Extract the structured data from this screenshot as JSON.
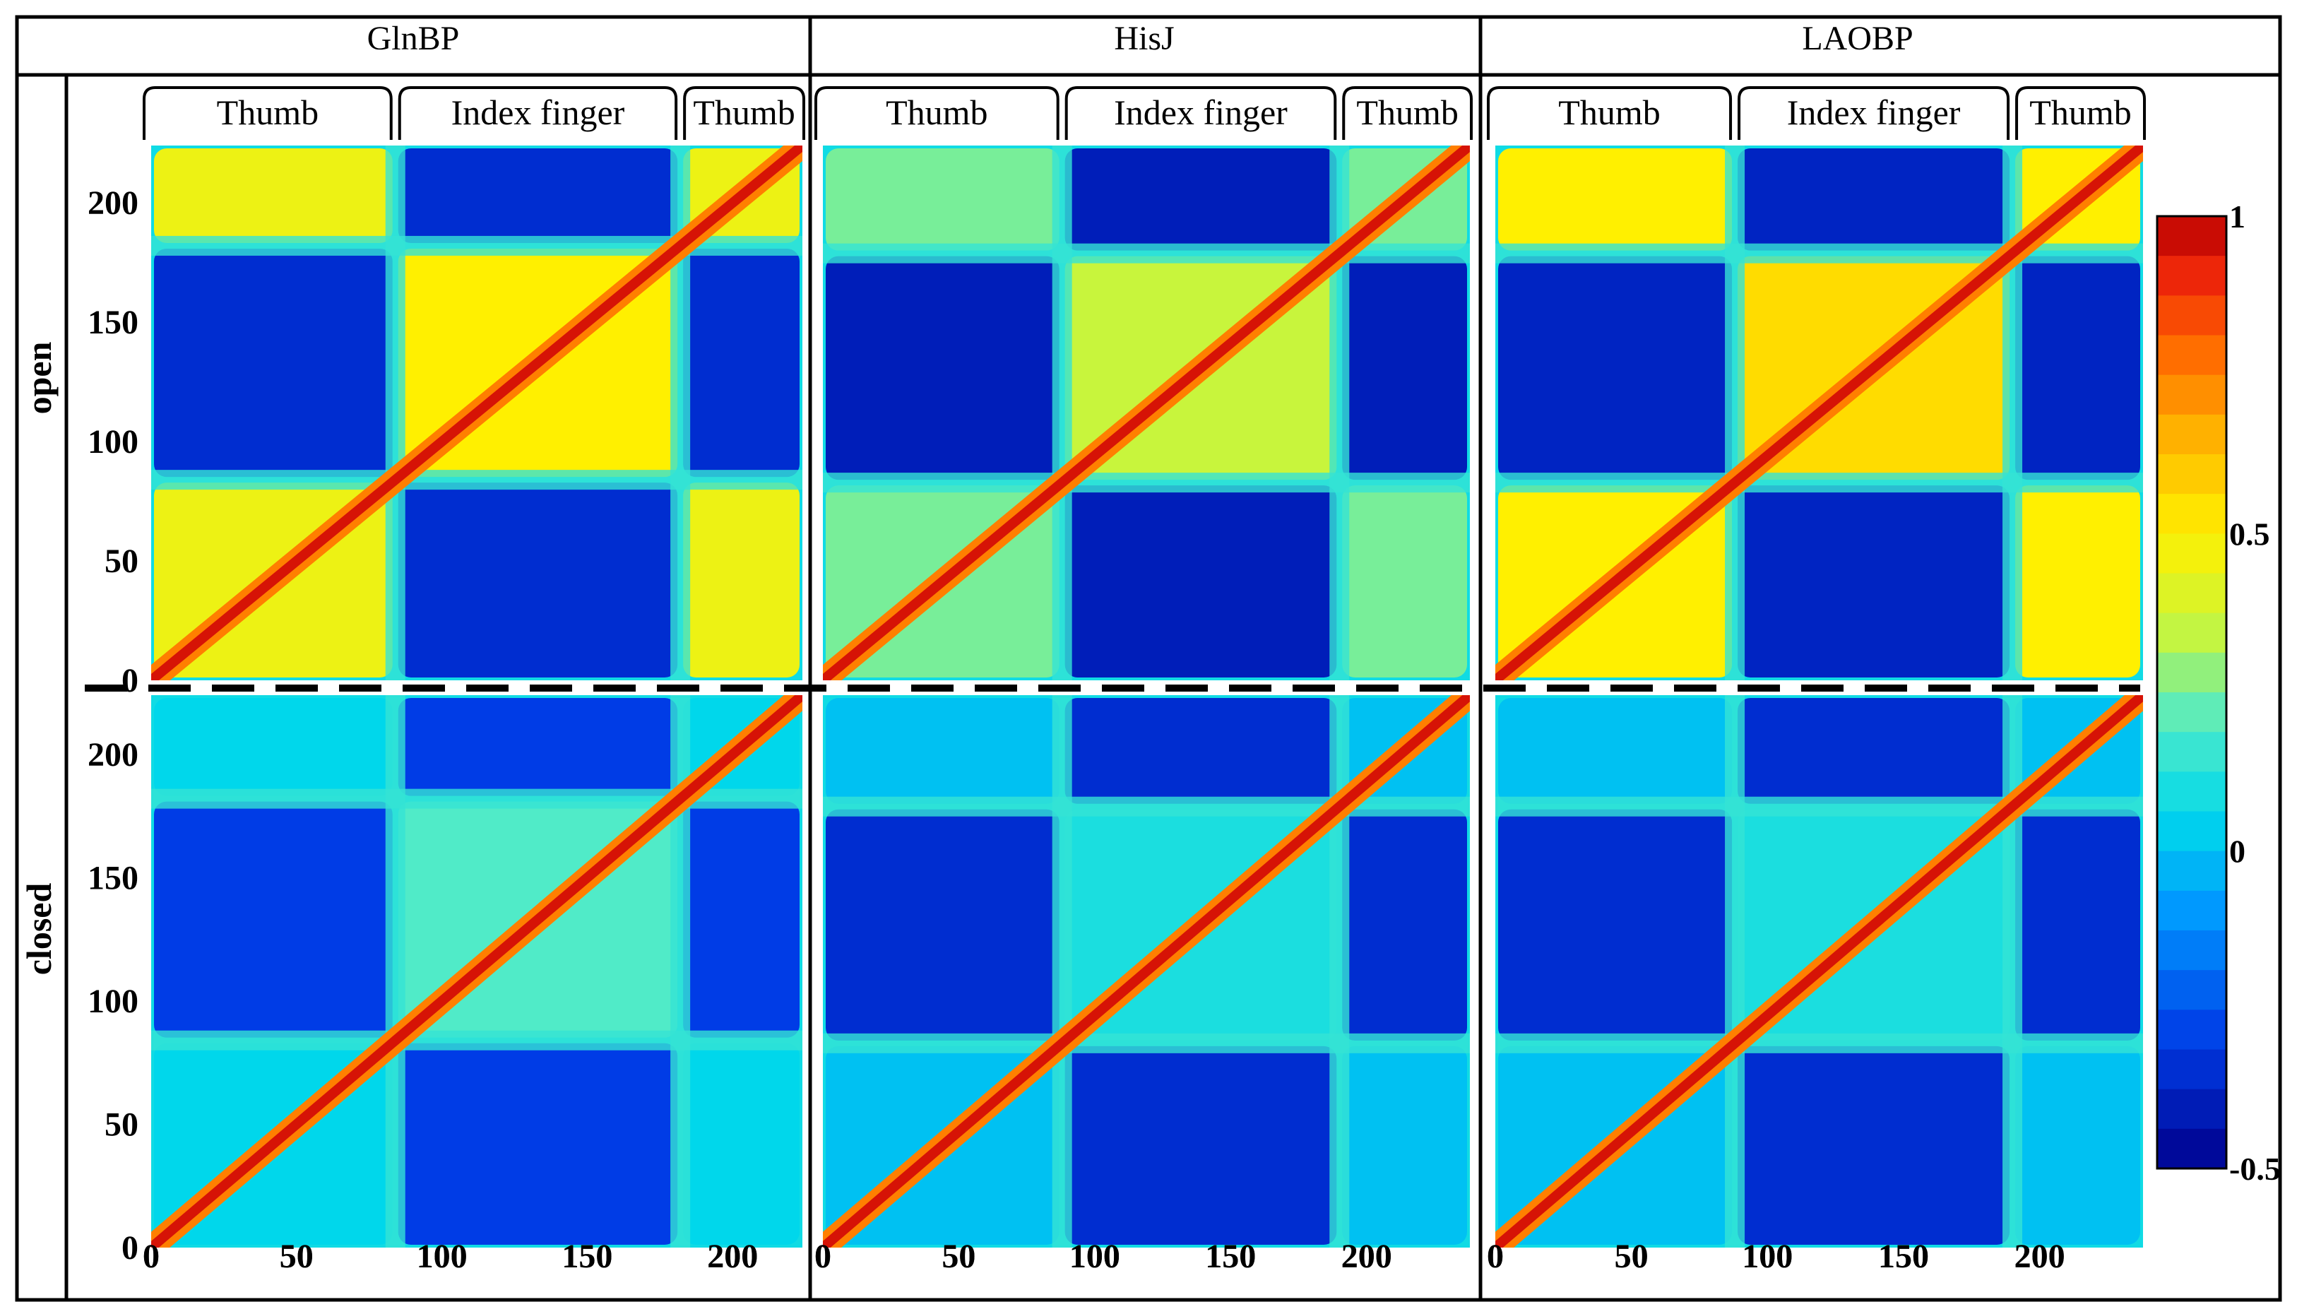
{
  "chart_data": {
    "type": "heatmap",
    "title": "",
    "columns": [
      "GlnBP",
      "HisJ",
      "LAOBP"
    ],
    "rows": [
      "open",
      "closed"
    ],
    "domain_labels": [
      "Thumb",
      "Index finger",
      "Thumb"
    ],
    "x_ticks": [
      0,
      50,
      100,
      150,
      200
    ],
    "y_ticks": [
      0,
      50,
      100,
      150,
      200
    ],
    "axis_ranges": {
      "GlnBP": [
        0,
        224
      ],
      "HisJ": [
        0,
        238
      ],
      "LAOBP": [
        0,
        238
      ]
    },
    "domain_boundaries": {
      "GlnBP": [
        84,
        182
      ],
      "HisJ": [
        88,
        190
      ],
      "LAOBP": [
        88,
        190
      ]
    },
    "colorbar": {
      "min": -0.5,
      "max": 1,
      "ticks": [
        1,
        0.5,
        0,
        -0.5
      ],
      "tick_labels": [
        "1",
        "0.5",
        "0",
        "-0.5"
      ]
    },
    "panels": [
      {
        "protein": "GlnBP",
        "state": "open",
        "intra_thumb": 0.45,
        "intra_index": 0.5,
        "inter_domain": -0.35
      },
      {
        "protein": "HisJ",
        "state": "open",
        "intra_thumb": 0.25,
        "intra_index": 0.35,
        "inter_domain": -0.4
      },
      {
        "protein": "LAOBP",
        "state": "open",
        "intra_thumb": 0.5,
        "intra_index": 0.55,
        "inter_domain": -0.38
      },
      {
        "protein": "GlnBP",
        "state": "closed",
        "intra_thumb": 0.05,
        "intra_index": 0.2,
        "inter_domain": -0.3
      },
      {
        "protein": "HisJ",
        "state": "closed",
        "intra_thumb": 0.0,
        "intra_index": 0.1,
        "inter_domain": -0.35
      },
      {
        "protein": "LAOBP",
        "state": "closed",
        "intra_thumb": 0.0,
        "intra_index": 0.1,
        "inter_domain": -0.35
      }
    ]
  }
}
